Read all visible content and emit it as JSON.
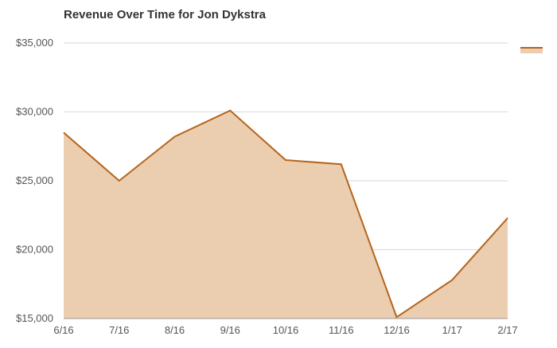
{
  "chart_data": {
    "type": "area",
    "title": "Revenue Over Time for Jon Dykstra",
    "xlabel": "",
    "ylabel": "",
    "categories": [
      "6/16",
      "7/16",
      "8/16",
      "9/16",
      "10/16",
      "11/16",
      "12/16",
      "1/17",
      "2/17"
    ],
    "series": [
      {
        "values": [
          28500,
          25000,
          28200,
          30100,
          26500,
          26200,
          15100,
          17800,
          22300
        ]
      }
    ],
    "ylim": [
      15000,
      35000
    ],
    "yticks": [
      15000,
      20000,
      25000,
      30000,
      35000
    ],
    "ytick_labels": [
      "$15,000",
      "$20,000",
      "$25,000",
      "$30,000",
      "$35,000"
    ],
    "grid": true,
    "legend": "top-right",
    "colors": {
      "line": "#b5651d",
      "fill": "#ebcdaf",
      "grid": "#d9d9d9",
      "axis": "#999999"
    }
  }
}
